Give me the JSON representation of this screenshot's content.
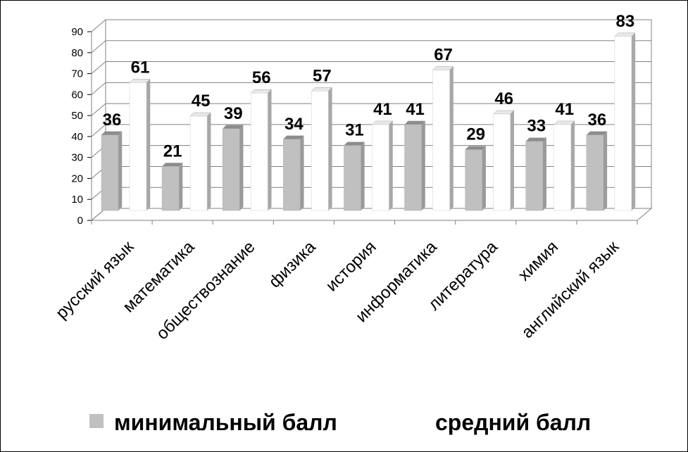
{
  "chart_data": {
    "type": "bar",
    "categories": [
      "русский язык",
      "математика",
      "обществознание",
      "физика",
      "история",
      "информатика",
      "литература",
      "химия",
      "английский язык"
    ],
    "series": [
      {
        "name": "минимальный балл",
        "values": [
          36,
          21,
          39,
          34,
          31,
          41,
          29,
          33,
          36
        ],
        "color": "#c0c0c0"
      },
      {
        "name": "средний балл",
        "values": [
          61,
          45,
          56,
          57,
          41,
          67,
          46,
          41,
          83
        ],
        "color": "#ffffff"
      }
    ],
    "ylim": [
      0,
      90
    ],
    "yticks": [
      "0",
      "10",
      "20",
      "30",
      "40",
      "50",
      "60",
      "70",
      "80",
      "90"
    ],
    "grid": true,
    "three_d": true,
    "legend": "bottom",
    "data_labels": true
  }
}
